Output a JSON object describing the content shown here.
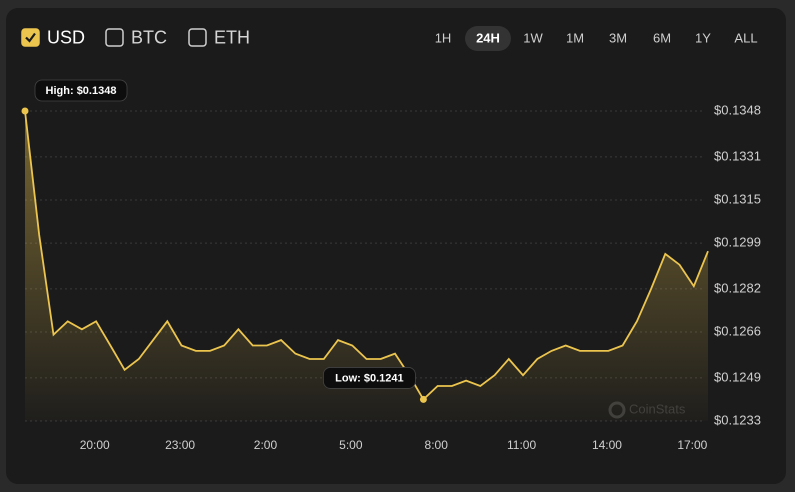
{
  "ui": {
    "currencies": [
      {
        "label": "USD",
        "checked": true
      },
      {
        "label": "BTC",
        "checked": false
      },
      {
        "label": "ETH",
        "checked": false
      }
    ],
    "ranges": [
      {
        "label": "1H",
        "active": false
      },
      {
        "label": "24H",
        "active": true
      },
      {
        "label": "1W",
        "active": false
      },
      {
        "label": "1M",
        "active": false
      },
      {
        "label": "3M",
        "active": false
      },
      {
        "label": "6M",
        "active": false
      },
      {
        "label": "1Y",
        "active": false
      },
      {
        "label": "ALL",
        "active": false
      }
    ],
    "watermark": "CoinStats"
  },
  "chart_data": {
    "type": "area",
    "x": [
      17.55,
      18.05,
      18.55,
      19.05,
      19.55,
      20.05,
      20.55,
      21.05,
      21.55,
      22.05,
      22.55,
      23.05,
      23.55,
      24.05,
      24.55,
      25.05,
      25.55,
      26.05,
      26.55,
      27.05,
      27.55,
      28.05,
      28.55,
      29.05,
      29.55,
      30.05,
      30.55,
      31.05,
      31.55,
      32.05,
      32.55,
      33.05,
      33.55,
      34.05,
      34.55,
      35.05,
      35.55,
      36.05,
      36.55,
      37.05,
      37.55,
      38.05,
      38.55,
      39.05,
      39.55,
      40.05,
      40.55,
      41.05,
      41.55
    ],
    "series": [
      {
        "color": "#ecc54f",
        "values": [
          0.1348,
          0.1302,
          0.1265,
          0.127,
          0.1267,
          0.127,
          0.1261,
          0.1252,
          0.1256,
          0.1263,
          0.127,
          0.1261,
          0.1259,
          0.1259,
          0.1261,
          0.1267,
          0.1261,
          0.1261,
          0.1263,
          0.1258,
          0.1256,
          0.1256,
          0.1263,
          0.1261,
          0.1256,
          0.1256,
          0.1258,
          0.125,
          0.1241,
          0.1246,
          0.1246,
          0.1248,
          0.1246,
          0.125,
          0.1256,
          0.125,
          0.1256,
          0.1259,
          0.1261,
          0.1259,
          0.1259,
          0.1259,
          0.1261,
          0.127,
          0.1282,
          0.1295,
          0.1291,
          0.1283,
          0.1296
        ]
      }
    ],
    "xlim": [
      17.55,
      41.55
    ],
    "xticks": [
      {
        "value": 20,
        "label": "20:00"
      },
      {
        "value": 23,
        "label": "23:00"
      },
      {
        "value": 26,
        "label": "2:00"
      },
      {
        "value": 29,
        "label": "5:00"
      },
      {
        "value": 32,
        "label": "8:00"
      },
      {
        "value": 35,
        "label": "11:00"
      },
      {
        "value": 38,
        "label": "14:00"
      },
      {
        "value": 41,
        "label": "17:00"
      }
    ],
    "ylim": [
      0.1233,
      0.1348
    ],
    "yticks": [
      {
        "value": 0.1348,
        "label": "$0.1348"
      },
      {
        "value": 0.1331,
        "label": "$0.1331"
      },
      {
        "value": 0.1315,
        "label": "$0.1315"
      },
      {
        "value": 0.1299,
        "label": "$0.1299"
      },
      {
        "value": 0.1282,
        "label": "$0.1282"
      },
      {
        "value": 0.1266,
        "label": "$0.1266"
      },
      {
        "value": 0.1249,
        "label": "$0.1249"
      },
      {
        "value": 0.1233,
        "label": "$0.1233"
      }
    ],
    "grid": true,
    "annotations": [
      "High: $0.1348",
      "Low: $0.1241"
    ]
  }
}
